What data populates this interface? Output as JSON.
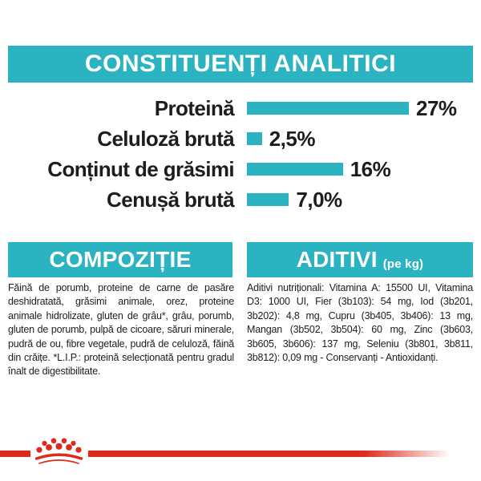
{
  "colors": {
    "teal": "#2cb3c2",
    "red": "#dc2a1b",
    "ink": "#1d1d1b",
    "white": "#ffffff"
  },
  "analytical": {
    "title": "CONSTITUENȚI ANALITICI"
  },
  "chart_data": {
    "type": "bar",
    "orientation": "horizontal",
    "categories": [
      "Proteină",
      "Celuloză brută",
      "Conținut de grăsimi",
      "Cenușă brută"
    ],
    "values": [
      27,
      2.5,
      16,
      7.0
    ],
    "value_labels": [
      "27%",
      "2,5%",
      "16%",
      "7,0%"
    ],
    "xlim": [
      0,
      27
    ],
    "bar_color": "#2cb3c2",
    "grid": false,
    "legend": false
  },
  "composition": {
    "title": "COMPOZIȚIE",
    "body": "Făină de porumb, proteine de carne de pasăre deshidratată, grăsimi animale, orez, proteine animale hidrolizate, gluten de grâu*, grâu, porumb, gluten de porumb, pulpă de cicoare, săruri minerale, pudră de ou, fibre vegetale, pudră de celuloză, făină din crăițe. *L.I.P.: proteină selecționată pentru gradul înalt de digestibilitate."
  },
  "additives": {
    "title": "ADITIVI",
    "unit_label": "(pe kg)",
    "body": "Aditivi nutriționali: Vitamina A: 15500 UI, Vitamina D3: 1000 UI, Fier (3b103): 54 mg, Iod (3b201, 3b202): 4,8 mg, Cupru (3b405, 3b406): 13 mg, Mangan (3b502, 3b504): 60 mg, Zinc (3b603, 3b605, 3b606): 137 mg, Seleniu (3b801, 3b811, 3b812): 0,09 mg - Conservanți - Antioxidanți."
  }
}
